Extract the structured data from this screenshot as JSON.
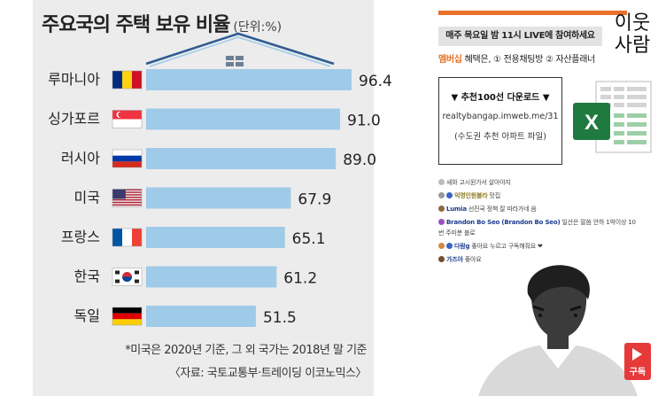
{
  "infographic": {
    "title": "주요국의 주택 보유 비율",
    "unit": "(단위:%)",
    "note": "*미국은 2020년 기준, 그 외 국가는 2018년 말 기준",
    "source": "〈자료: 국토교통부·트레이딩 이코노믹스〉"
  },
  "chart_data": {
    "type": "bar",
    "orientation": "horizontal",
    "title": "주요국의 주택 보유 비율",
    "unit": "(단위:%)",
    "categories": [
      "루마니아",
      "싱가포르",
      "러시아",
      "미국",
      "프랑스",
      "한국",
      "독일"
    ],
    "values": [
      96.4,
      91.0,
      89.0,
      67.9,
      65.1,
      61.2,
      51.5
    ],
    "value_labels": [
      "96.4",
      "91.0",
      "89.0",
      "67.9",
      "65.1",
      "61.2",
      "51.5"
    ],
    "bar_color": "#9fcbe8",
    "roof_color": "#2f5c92"
  },
  "stream": {
    "live_notice": "매주 목요일 밤 11시 LIVE에 참여하세요",
    "member_label": "멤버십",
    "member_text": " 혜택은, ① 전용채팅방 ② 자산플래너",
    "download_title": "▼ 추천100선 다운로드 ▼",
    "download_url": "realtybangap.imweb.me/31",
    "download_sub": "(수도권 추천 아파트 파일)",
    "brand_line1": "이웃",
    "brand_line2": "사람",
    "excel_letter": "X",
    "subscribe_label": "구독",
    "accent_color": "#e8702a",
    "subscribe_color": "#e63a3a"
  },
  "chat": [
    {
      "name": "",
      "message": "새와  고시원가서 살아야지"
    },
    {
      "name": "익명인원블라",
      "message": "맛집"
    },
    {
      "name": "Lumia",
      "message": "선진국 정책 잘 따라가네 음"
    },
    {
      "name": "Brandon Bo Seo (Brandon Bo Seo)",
      "message": "일산은 말씀 안하 1억이상 10"
    },
    {
      "name": "",
      "message": "번 주미분 블로"
    },
    {
      "name": "다람g",
      "message": "좋아요 누르고 구독해줘요 ❤"
    },
    {
      "name": "가즈아",
      "message": "좋아요"
    }
  ]
}
